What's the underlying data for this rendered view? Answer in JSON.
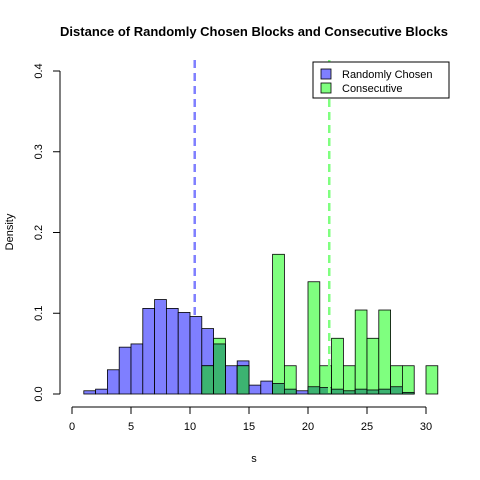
{
  "chart_data": {
    "type": "bar",
    "title": "Distance of Randomly Chosen Blocks and Consecutive Blocks",
    "xlabel": "s",
    "ylabel": "Density",
    "xlim": [
      0,
      31
    ],
    "ylim": [
      0,
      0.4
    ],
    "x_ticks": [
      "0",
      "5",
      "10",
      "15",
      "20",
      "25",
      "30"
    ],
    "y_ticks": [
      "0.0",
      "0.1",
      "0.2",
      "0.3",
      "0.4"
    ],
    "bin_width": 1,
    "legend_position": "top-right",
    "series": [
      {
        "name": "Randomly Chosen",
        "color": "#7F7FFF",
        "bins": [
          {
            "x0": 1,
            "value": 0.004
          },
          {
            "x0": 2,
            "value": 0.006
          },
          {
            "x0": 3,
            "value": 0.03
          },
          {
            "x0": 4,
            "value": 0.058
          },
          {
            "x0": 5,
            "value": 0.062
          },
          {
            "x0": 6,
            "value": 0.106
          },
          {
            "x0": 7,
            "value": 0.117
          },
          {
            "x0": 8,
            "value": 0.106
          },
          {
            "x0": 9,
            "value": 0.101
          },
          {
            "x0": 10,
            "value": 0.096
          },
          {
            "x0": 11,
            "value": 0.081
          },
          {
            "x0": 12,
            "value": 0.062
          },
          {
            "x0": 13,
            "value": 0.035
          },
          {
            "x0": 14,
            "value": 0.041
          },
          {
            "x0": 15,
            "value": 0.011
          },
          {
            "x0": 16,
            "value": 0.016
          },
          {
            "x0": 17,
            "value": 0.013
          },
          {
            "x0": 18,
            "value": 0.006
          },
          {
            "x0": 19,
            "value": 0.004
          },
          {
            "x0": 20,
            "value": 0.009
          },
          {
            "x0": 21,
            "value": 0.008
          },
          {
            "x0": 22,
            "value": 0.006
          },
          {
            "x0": 23,
            "value": 0.004
          },
          {
            "x0": 24,
            "value": 0.006
          },
          {
            "x0": 25,
            "value": 0.005
          },
          {
            "x0": 26,
            "value": 0.006
          },
          {
            "x0": 27,
            "value": 0.009
          },
          {
            "x0": 28,
            "value": 0.002
          }
        ]
      },
      {
        "name": "Consecutive",
        "color": "#7FFF7F",
        "bins": [
          {
            "x0": 11,
            "value": 0.035
          },
          {
            "x0": 12,
            "value": 0.069
          },
          {
            "x0": 14,
            "value": 0.035
          },
          {
            "x0": 17,
            "value": 0.173
          },
          {
            "x0": 18,
            "value": 0.035
          },
          {
            "x0": 20,
            "value": 0.139
          },
          {
            "x0": 21,
            "value": 0.035
          },
          {
            "x0": 22,
            "value": 0.069
          },
          {
            "x0": 23,
            "value": 0.035
          },
          {
            "x0": 24,
            "value": 0.104
          },
          {
            "x0": 25,
            "value": 0.069
          },
          {
            "x0": 26,
            "value": 0.104
          },
          {
            "x0": 27,
            "value": 0.035
          },
          {
            "x0": 28,
            "value": 0.035
          },
          {
            "x0": 30,
            "value": 0.035
          }
        ]
      }
    ],
    "mean_lines": [
      {
        "series": "Randomly Chosen",
        "x": 10.4,
        "color": "#7F7FFF"
      },
      {
        "series": "Consecutive",
        "x": 21.8,
        "color": "#7FFF7F"
      }
    ],
    "overlap_color": "#3CB371"
  }
}
